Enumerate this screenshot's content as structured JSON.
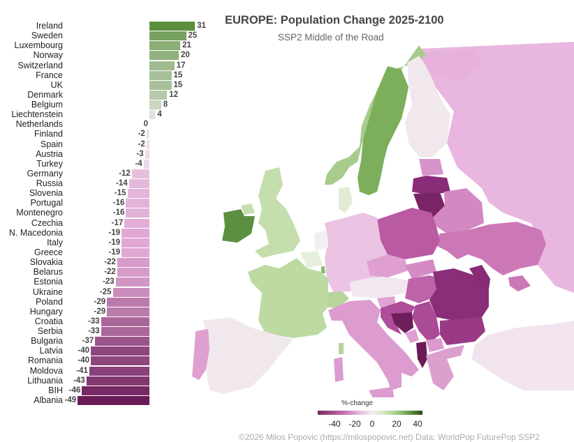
{
  "title": "EUROPE: Population Change 2025-2100",
  "subtitle": "SSP2 Middle of the Road",
  "legend": {
    "title": "%-change",
    "ticks": [
      "-40",
      "-20",
      "0",
      "20",
      "40"
    ]
  },
  "caption": "©2026 Milos Popovic (https://milospopovic.net) Data: WorldPop FuturePop SSP2",
  "colors": {
    "strong_positive": "#5a8f3c",
    "positive": "#9cc57d",
    "neutral": "#f2ecf0",
    "negative": "#dfa3d2",
    "strong_negative": "#6e1e5a"
  },
  "chart_data": [
    {
      "type": "bar",
      "orientation": "horizontal",
      "title": "EUROPE: Population Change 2025-2100",
      "subtitle": "SSP2 Middle of the Road",
      "xlabel": "%-change",
      "ylabel": "",
      "categories": [
        "Ireland",
        "Sweden",
        "Luxembourg",
        "Norway",
        "Switzerland",
        "France",
        "UK",
        "Denmark",
        "Belgium",
        "Liechtenstein",
        "Netherlands",
        "Finland",
        "Spain",
        "Austria",
        "Turkey",
        "Germany",
        "Russia",
        "Slovenia",
        "Portugal",
        "Montenegro",
        "Czechia",
        "N. Macedonia",
        "Italy",
        "Greece",
        "Slovakia",
        "Belarus",
        "Estonia",
        "Ukraine",
        "Poland",
        "Hungary",
        "Croatia",
        "Serbia",
        "Bulgaria",
        "Latvia",
        "Romania",
        "Moldova",
        "Lithuania",
        "BIH",
        "Albania"
      ],
      "values": [
        31,
        25,
        21,
        20,
        17,
        15,
        15,
        12,
        8,
        4,
        0,
        -2,
        -2,
        -3,
        -4,
        -12,
        -14,
        -15,
        -16,
        -16,
        -17,
        -19,
        -19,
        -19,
        -22,
        -22,
        -23,
        -25,
        -29,
        -29,
        -33,
        -33,
        -37,
        -40,
        -40,
        -41,
        -43,
        -46,
        -49
      ],
      "grid": false,
      "legend_position": "none"
    },
    {
      "type": "heatmap",
      "subtype": "choropleth",
      "title": "EUROPE: Population Change 2025-2100",
      "legend": {
        "title": "%-change",
        "ticks": [
          -40,
          -20,
          0,
          20,
          40
        ],
        "range": [
          -50,
          45
        ],
        "position": "bottom-center",
        "palette": "PiYG diverging"
      },
      "regions": "same as bar chart categories"
    }
  ]
}
